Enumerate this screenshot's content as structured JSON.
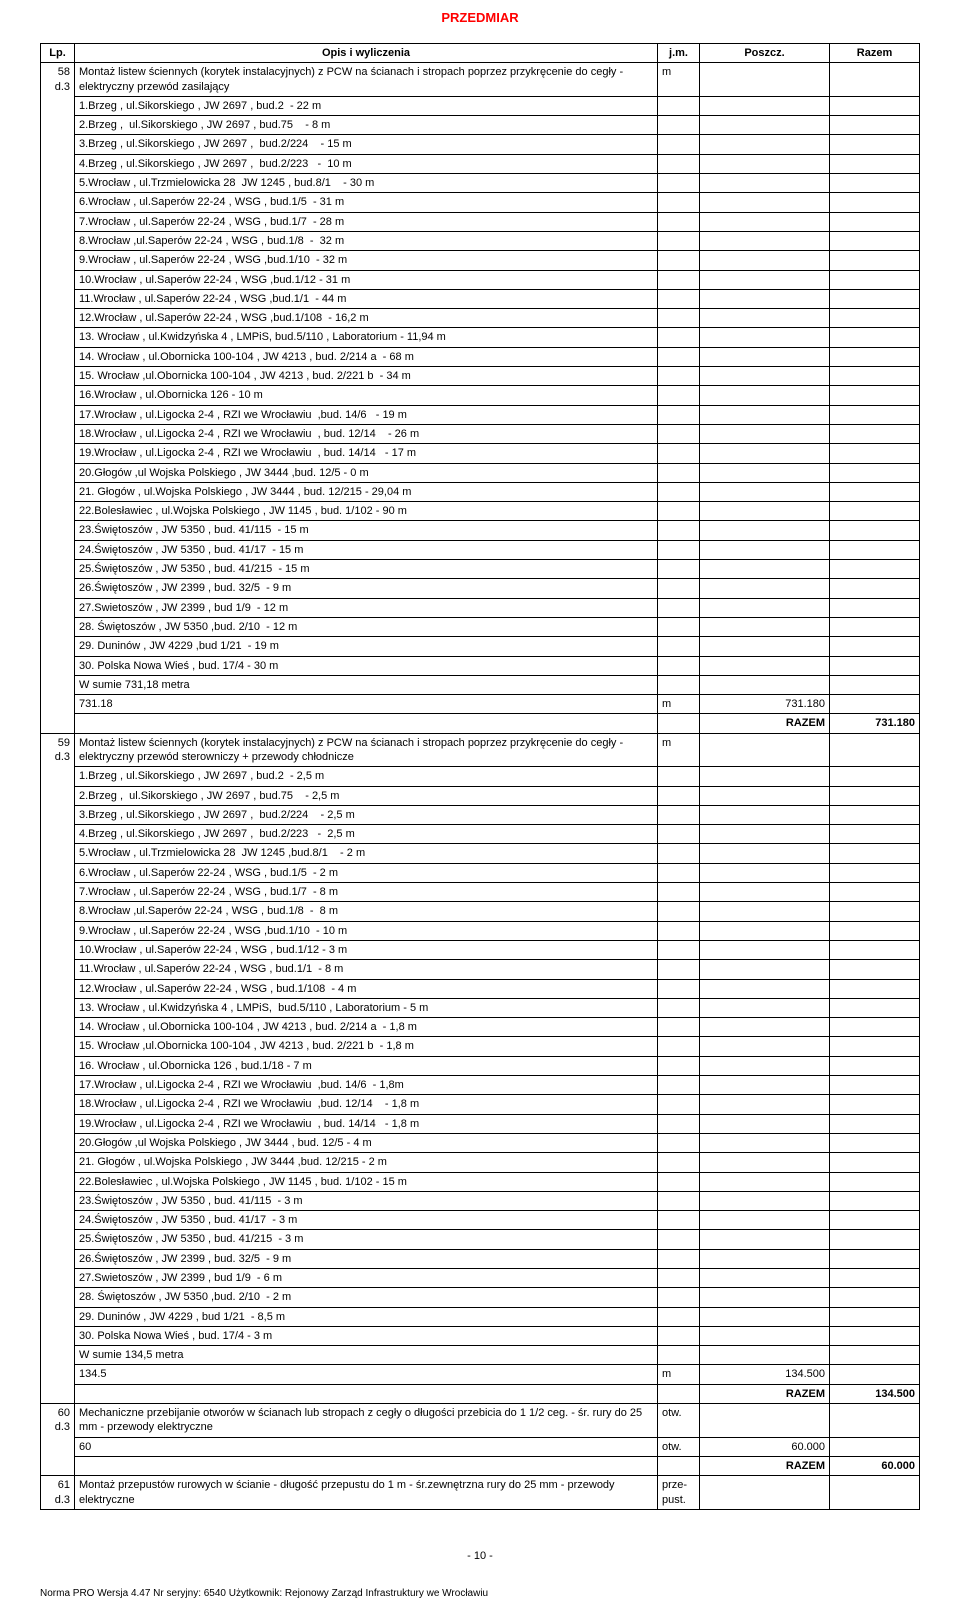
{
  "doc": {
    "title": "PRZEDMIAR",
    "page_number": "- 10 -",
    "footer": "Norma PRO Wersja 4.47 Nr seryjny: 6540 Użytkownik: Rejonowy Zarząd Infrastruktury we Wrocławiu"
  },
  "headers": {
    "lp": "Lp.",
    "opis": "Opis i wyliczenia",
    "jm": "j.m.",
    "poszcz": "Poszcz.",
    "razem": "Razem"
  },
  "groups": [
    {
      "lp": "58",
      "sub": "d.3",
      "heading": "Montaż listew ściennych (korytek instalacyjnych) z PCW na ścianach i stropach poprzez przykręcenie do cegły -  elektryczny przewód zasilający",
      "jm": "m",
      "lines": [
        "1.Brzeg , ul.Sikorskiego , JW 2697 , bud.2  - 22 m",
        "2.Brzeg ,  ul.Sikorskiego , JW 2697 , bud.75    - 8 m",
        "3.Brzeg , ul.Sikorskiego , JW 2697 ,  bud.2/224    - 15 m",
        "4.Brzeg , ul.Sikorskiego , JW 2697 ,  bud.2/223   -  10 m",
        "5.Wrocław , ul.Trzmielowicka 28  JW 1245 , bud.8/1    - 30 m",
        "6.Wrocław , ul.Saperów 22-24 , WSG , bud.1/5  - 31 m",
        "7.Wrocław , ul.Saperów 22-24 , WSG , bud.1/7  - 28 m",
        "8.Wrocław ,ul.Saperów 22-24 , WSG , bud.1/8  -  32 m",
        "9.Wrocław , ul.Saperów 22-24 , WSG ,bud.1/10  - 32 m",
        "10.Wrocław , ul.Saperów 22-24 , WSG ,bud.1/12 - 31 m",
        "11.Wrocław , ul.Saperów 22-24 , WSG ,bud.1/1  - 44 m",
        "12.Wrocław , ul.Saperów 22-24 , WSG ,bud.1/108  - 16,2 m",
        "13. Wrocław , ul.Kwidzyńska 4 , LMPiS, bud.5/110 , Laboratorium - 11,94 m",
        "14. Wrocław , ul.Obornicka 100-104 , JW 4213 , bud. 2/214 a  - 68 m",
        "15. Wrocław ,ul.Obornicka 100-104 , JW 4213 , bud. 2/221 b  - 34 m",
        "16.Wrocław , ul.Obornicka 126 - 10 m",
        "17.Wrocław , ul.Ligocka 2-4 , RZI we Wrocławiu  ,bud. 14/6   - 19 m",
        "18.Wrocław , ul.Ligocka 2-4 , RZI we Wrocławiu  , bud. 12/14    - 26 m",
        "19.Wrocław , ul.Ligocka 2-4 , RZI we Wrocławiu  , bud. 14/14   - 17 m",
        "20.Głogów ,ul Wojska Polskiego , JW 3444 ,bud. 12/5 - 0 m",
        "21. Głogów , ul.Wojska Polskiego , JW 3444 , bud. 12/215 - 29,04 m",
        "22.Bolesławiec , ul.Wojska Polskiego , JW 1145 , bud. 1/102 - 90 m",
        "23.Świętoszów , JW 5350 , bud. 41/115  - 15 m",
        "24.Świętoszów , JW 5350 , bud. 41/17  - 15 m",
        "25.Świętoszów , JW 5350 , bud. 41/215  - 15 m",
        "26.Świętoszów , JW 2399 , bud. 32/5  - 9 m",
        "27.Swietoszów , JW 2399 , bud 1/9  - 12 m",
        "28. Świętoszów , JW 5350 ,bud. 2/10  - 12 m",
        "29. Duninów , JW 4229 ,bud 1/21  - 19 m",
        "30. Polska Nowa Wieś , bud. 17/4 - 30 m",
        "W sumie 731,18 metra"
      ],
      "result_expr": "731.18",
      "result_jm": "m",
      "result_val": "731.180",
      "razem_label": "RAZEM",
      "razem_val": "731.180"
    },
    {
      "lp": "59",
      "sub": "d.3",
      "heading": "Montaż listew ściennych (korytek instalacyjnych) z PCW na ścianach i stropach poprzez przykręcenie do cegły - elektryczny przewód sterowniczy + przewody chłodnicze",
      "jm": "m",
      "lines": [
        "1.Brzeg , ul.Sikorskiego , JW 2697 , bud.2  - 2,5 m",
        "2.Brzeg ,  ul.Sikorskiego , JW 2697 , bud.75    - 2,5 m",
        "3.Brzeg , ul.Sikorskiego , JW 2697 ,  bud.2/224    - 2,5 m",
        "4.Brzeg , ul.Sikorskiego , JW 2697 ,  bud.2/223   -  2,5 m",
        "5.Wrocław , ul.Trzmielowicka 28  JW 1245 ,bud.8/1    - 2 m",
        "6.Wrocław , ul.Saperów 22-24 , WSG , bud.1/5  - 2 m",
        "7.Wrocław , ul.Saperów 22-24 , WSG , bud.1/7  - 8 m",
        "8.Wrocław ,ul.Saperów 22-24 , WSG , bud.1/8  -  8 m",
        "9.Wrocław , ul.Saperów 22-24 , WSG ,bud.1/10  - 10 m",
        "10.Wrocław , ul.Saperów 22-24 , WSG , bud.1/12 - 3 m",
        "11.Wrocław , ul.Saperów 22-24 , WSG , bud.1/1  - 8 m",
        "12.Wrocław , ul.Saperów 22-24 , WSG , bud.1/108  - 4 m",
        "13. Wrocław , ul.Kwidzyńska 4 , LMPiS,  bud.5/110 , Laboratorium - 5 m",
        "14. Wrocław , ul.Obornicka 100-104 , JW 4213 , bud. 2/214 a  - 1,8 m",
        "15. Wrocław ,ul.Obornicka 100-104 , JW 4213 , bud. 2/221 b  - 1,8 m",
        "16. Wrocław , ul.Obornicka 126 , bud.1/18 - 7 m",
        "17.Wrocław , ul.Ligocka 2-4 , RZI we Wrocławiu  ,bud. 14/6  - 1,8m",
        "18.Wrocław , ul.Ligocka 2-4 , RZI we Wrocławiu  ,bud. 12/14    - 1,8 m",
        "19.Wrocław , ul.Ligocka 2-4 , RZI we Wrocławiu  , bud. 14/14   - 1,8 m",
        "20.Głogów ,ul Wojska Polskiego , JW 3444 , bud. 12/5 - 4 m",
        "21. Głogów , ul.Wojska Polskiego , JW 3444 ,bud. 12/215 - 2 m",
        "22.Bolesławiec , ul.Wojska Polskiego , JW 1145 , bud. 1/102 - 15 m",
        "23.Świętoszów , JW 5350 , bud. 41/115  - 3 m",
        "24.Świętoszów , JW 5350 , bud. 41/17  - 3 m",
        "25.Świętoszów , JW 5350 , bud. 41/215  - 3 m",
        "26.Świętoszów , JW 2399 , bud. 32/5  - 9 m",
        "27.Swietoszów , JW 2399 , bud 1/9  - 6 m",
        "28. Świętoszów , JW 5350 ,bud. 2/10  - 2 m",
        "29. Duninów , JW 4229 , bud 1/21  - 8,5 m",
        "30. Polska Nowa Wieś , bud. 17/4 - 3 m",
        "W sumie 134,5 metra"
      ],
      "result_expr": "134.5",
      "result_jm": "m",
      "result_val": "134.500",
      "razem_label": "RAZEM",
      "razem_val": "134.500"
    },
    {
      "lp": "60",
      "sub": "d.3",
      "heading": "Mechaniczne przebijanie otworów w ścianach lub stropach z cegły o długości przebicia do 1 1/2 ceg. - śr. rury do 25 mm - przewody elektryczne",
      "jm": "otw.",
      "lines": [],
      "result_expr": "60",
      "result_jm": "otw.",
      "result_val": "60.000",
      "razem_label": "RAZEM",
      "razem_val": "60.000"
    },
    {
      "lp": "61",
      "sub": "d.3",
      "heading": "Montaż przepustów rurowych w ścianie - długość przepustu do 1 m - śr.zewnętrzna rury do 25 mm - przewody elektryczne",
      "jm": "prze-pust.",
      "lines": [],
      "result_expr": "",
      "result_jm": "",
      "result_val": "",
      "razem_label": "",
      "razem_val": ""
    }
  ],
  "style": {
    "title_color": "#ff0000",
    "border_color": "#000000",
    "font_size_body": 11,
    "font_size_title": 13
  }
}
